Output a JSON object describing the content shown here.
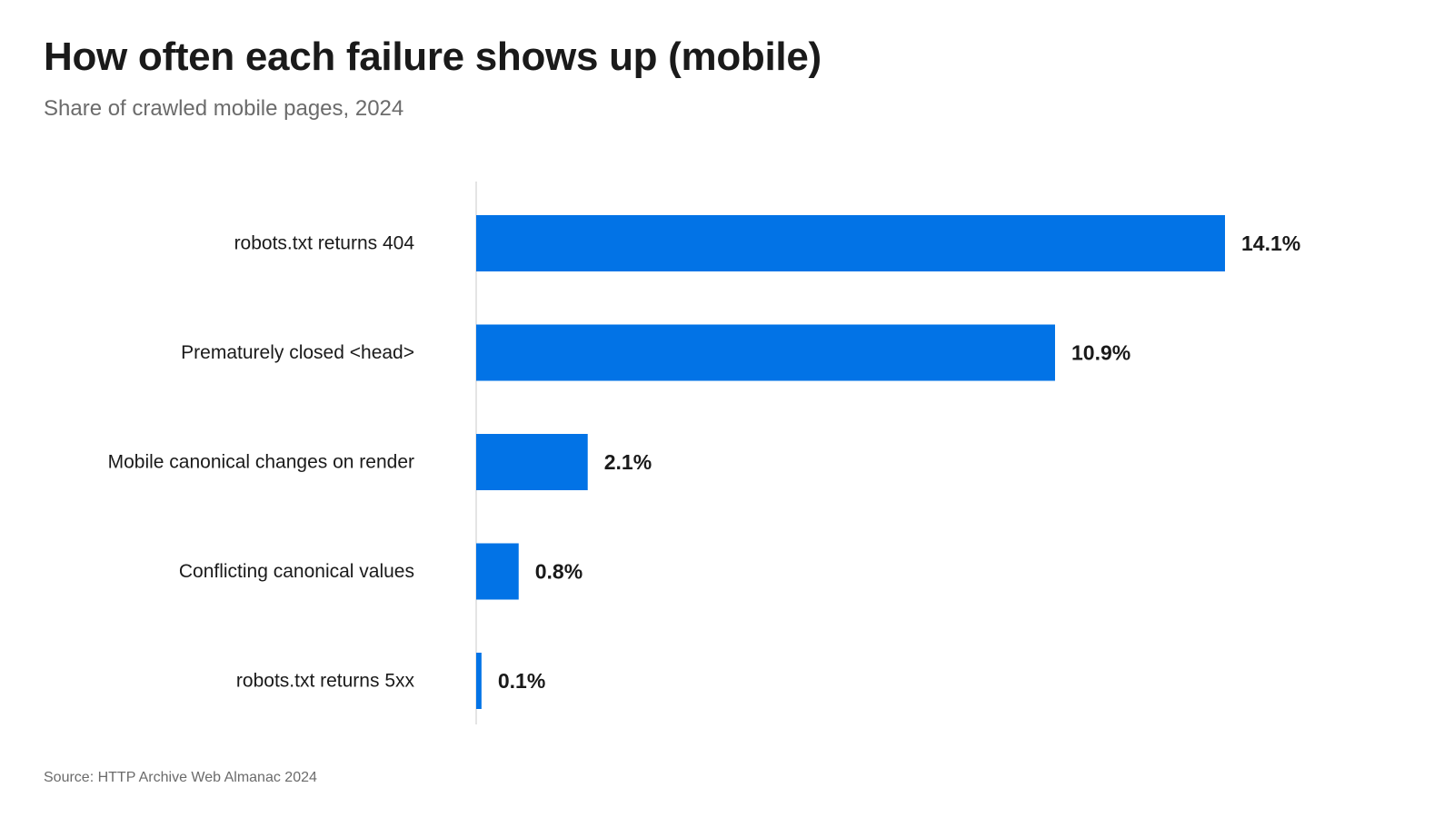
{
  "header": {
    "title": "How often each failure shows up (mobile)",
    "subtitle": "Share of crawled mobile pages, 2024"
  },
  "footer": {
    "source": "Source: HTTP Archive Web Almanac 2024"
  },
  "colors": {
    "bar": "#0273e6",
    "axis": "#dcdcdc",
    "label": "#1a1a1a"
  },
  "chart_data": {
    "type": "bar",
    "orientation": "horizontal",
    "title": "How often each failure shows up (mobile)",
    "subtitle": "Share of crawled mobile pages, 2024",
    "categories": [
      "robots.txt returns 404",
      "Prematurely closed <head>",
      "Mobile canonical changes on render",
      "Conflicting canonical values",
      "robots.txt returns 5xx"
    ],
    "values": [
      14.1,
      10.9,
      2.1,
      0.8,
      0.1
    ],
    "value_labels": [
      "14.1%",
      "10.9%",
      "2.1%",
      "0.8%",
      "0.1%"
    ],
    "unit": "%",
    "xlim": [
      0,
      14.1
    ],
    "xlabel": "",
    "ylabel": "",
    "grid": false,
    "legend": "none"
  }
}
